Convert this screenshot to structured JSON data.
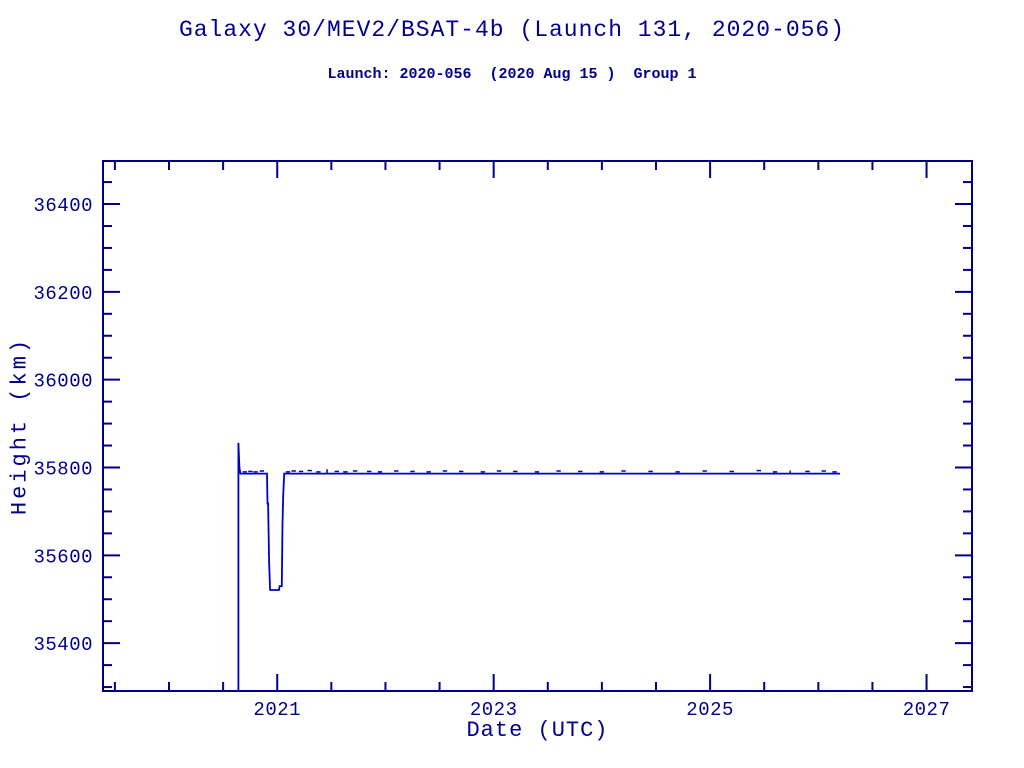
{
  "chart_data": {
    "type": "line",
    "title": "Galaxy 30/MEV2/BSAT-4b (Launch 131, 2020-056)",
    "subtitle": "Launch: 2020-056  (2020 Aug 15 )  Group 1",
    "xlabel": "Date (UTC)",
    "ylabel": "Height (km)",
    "xlim": [
      2019.39,
      2027.42
    ],
    "ylim": [
      35291,
      36498
    ],
    "x_major_ticks": [
      2021,
      2023,
      2025,
      2027
    ],
    "x_major_tick_labels": [
      "2021",
      "2023",
      "2025",
      "2027"
    ],
    "x_minor_tick_step": 0.5,
    "y_major_ticks": [
      35400,
      35600,
      35800,
      36000,
      36200,
      36400
    ],
    "y_major_tick_labels": [
      "35400",
      "35600",
      "35800",
      "36000",
      "36200",
      "36400"
    ],
    "y_minor_tick_step": 50,
    "grid": false,
    "legend": null,
    "colors": {
      "axis": "#000080",
      "text": "#000090",
      "line": "#0000cd",
      "background": "#ffffff"
    },
    "series": [
      {
        "name": "height_km",
        "flat_level_km": 35786,
        "points": [
          [
            2020.641,
            35291
          ],
          [
            2020.641,
            35856
          ],
          [
            2020.65,
            35800
          ],
          [
            2020.66,
            35786
          ],
          [
            2020.905,
            35786
          ],
          [
            2020.91,
            35718
          ],
          [
            2020.916,
            35718
          ],
          [
            2020.925,
            35585
          ],
          [
            2020.934,
            35521
          ],
          [
            2021.016,
            35521
          ],
          [
            2021.022,
            35530
          ],
          [
            2021.042,
            35530
          ],
          [
            2021.049,
            35672
          ],
          [
            2021.055,
            35737
          ],
          [
            2021.064,
            35786
          ],
          [
            2026.2,
            35786
          ]
        ]
      }
    ],
    "noise_marks": [
      [
        2020.7,
        35790
      ],
      [
        2020.752,
        35791
      ],
      [
        2020.8,
        35790
      ],
      [
        2020.858,
        35792
      ],
      [
        2021.1,
        35790
      ],
      [
        2021.152,
        35792
      ],
      [
        2021.22,
        35791
      ],
      [
        2021.3,
        35793
      ],
      [
        2021.38,
        35790
      ],
      [
        2021.55,
        35791
      ],
      [
        2021.63,
        35790
      ],
      [
        2021.72,
        35792
      ],
      [
        2021.85,
        35791
      ],
      [
        2021.95,
        35790
      ],
      [
        2022.1,
        35792
      ],
      [
        2022.25,
        35791
      ],
      [
        2022.4,
        35790
      ],
      [
        2022.55,
        35792
      ],
      [
        2022.7,
        35791
      ],
      [
        2022.9,
        35790
      ],
      [
        2023.05,
        35792
      ],
      [
        2023.2,
        35791
      ],
      [
        2023.4,
        35790
      ],
      [
        2023.6,
        35792
      ],
      [
        2023.8,
        35791
      ],
      [
        2024.0,
        35790
      ],
      [
        2024.2,
        35792
      ],
      [
        2024.45,
        35791
      ],
      [
        2024.7,
        35790
      ],
      [
        2024.95,
        35792
      ],
      [
        2025.2,
        35791
      ],
      [
        2025.45,
        35793
      ],
      [
        2025.6,
        35790
      ],
      [
        2025.9,
        35791
      ],
      [
        2026.05,
        35792
      ],
      [
        2026.15,
        35790
      ]
    ],
    "spike_marks": [
      {
        "x": 2021.46,
        "km_from": 35786,
        "km_to": 35796
      },
      {
        "x": 2025.74,
        "km_from": 35786,
        "km_to": 35793
      }
    ],
    "events": {
      "launch_line_x": 2020.641,
      "launch_spike_top_km": 35856,
      "relocation_dip": {
        "start": 2020.905,
        "end": 2021.064,
        "min_km": 35521
      }
    }
  }
}
